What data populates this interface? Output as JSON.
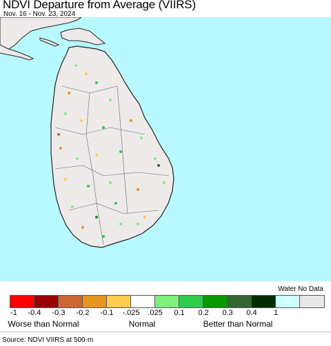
{
  "header": {
    "title": "NDVI Departure from Average (VIIRS)",
    "date_range": "Nov. 16 - Nov. 23, 2024"
  },
  "map": {
    "water_color": "#b8f8ff",
    "land_color": "#eeeaea",
    "region": "Sri Lanka"
  },
  "legend": {
    "header": "Water No Data",
    "swatches": [
      {
        "color": "#ff0000"
      },
      {
        "color": "#990000"
      },
      {
        "color": "#cc6633"
      },
      {
        "color": "#e6961e"
      },
      {
        "color": "#ffcc4d"
      },
      {
        "color": "#ffffff"
      },
      {
        "color": "#7df07d"
      },
      {
        "color": "#2ecc4d"
      },
      {
        "color": "#0a9900"
      },
      {
        "color": "#336633"
      },
      {
        "color": "#002d00"
      },
      {
        "color": "#ccffff"
      },
      {
        "color": "#e8e8e8"
      }
    ],
    "ticks": [
      "-1",
      "-0.4",
      "-0.3",
      "-0.2",
      "-0.1",
      "-.025",
      ".025",
      "0.1",
      "0.2",
      "0.3",
      "0.4",
      "1"
    ],
    "categories": [
      "Worse than Normal",
      "Normal",
      "Better than Normal"
    ]
  },
  "footer": {
    "source": "Source: NDVI VIIRS at 500-m"
  }
}
